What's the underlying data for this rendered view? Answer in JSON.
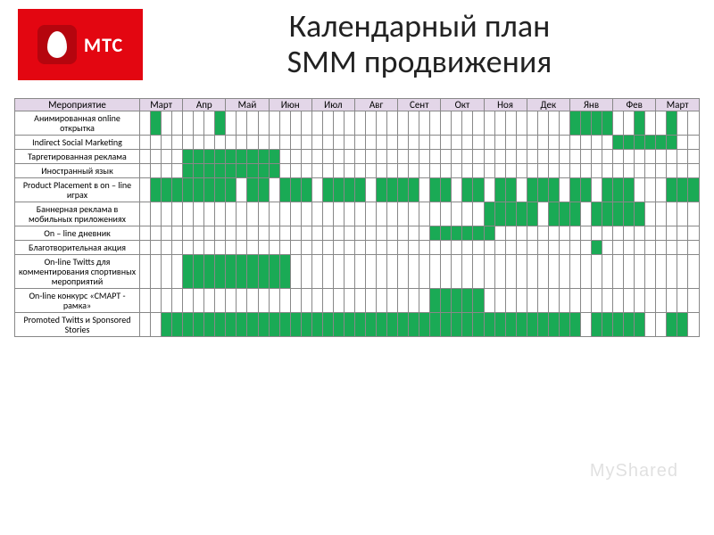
{
  "logo_text": "МТС",
  "title_line1": "Календарный план",
  "title_line2": "SMM продвижения",
  "watermark": "MyShared",
  "header_activity": "Мероприятие",
  "months": [
    "Март",
    "Апр",
    "Май",
    "Июн",
    "Июл",
    "Авг",
    "Сент",
    "Окт",
    "Ноя",
    "Дек",
    "Янв",
    "Фев",
    "Март"
  ],
  "weeks_per_month": 4,
  "colors": {
    "filled": "#1aaa55",
    "header_bg": "#e3d6e8",
    "logo_bg": "#e30611",
    "border": "#888"
  },
  "rows": [
    {
      "label": "Анимированная online открытка",
      "cells": [
        0,
        1,
        0,
        0,
        0,
        0,
        0,
        1,
        0,
        0,
        0,
        0,
        0,
        0,
        0,
        0,
        0,
        0,
        0,
        0,
        0,
        0,
        0,
        0,
        0,
        0,
        0,
        0,
        0,
        0,
        0,
        0,
        0,
        0,
        0,
        0,
        0,
        0,
        0,
        0,
        1,
        1,
        1,
        1,
        0,
        0,
        1,
        0,
        0,
        1,
        0,
        0
      ]
    },
    {
      "label": "Indirect Social Marketing",
      "cells": [
        0,
        0,
        0,
        0,
        0,
        0,
        0,
        0,
        0,
        0,
        0,
        0,
        0,
        0,
        0,
        0,
        0,
        0,
        0,
        0,
        0,
        0,
        0,
        0,
        0,
        0,
        0,
        0,
        0,
        0,
        0,
        0,
        0,
        0,
        0,
        0,
        0,
        0,
        0,
        0,
        0,
        0,
        0,
        0,
        1,
        1,
        1,
        1,
        1,
        1,
        0,
        0
      ]
    },
    {
      "label": "Таргетированная реклама",
      "cells": [
        0,
        0,
        0,
        0,
        1,
        1,
        1,
        1,
        1,
        1,
        1,
        1,
        1,
        0,
        0,
        0,
        0,
        0,
        0,
        0,
        0,
        0,
        0,
        0,
        0,
        0,
        0,
        0,
        0,
        0,
        0,
        0,
        0,
        0,
        0,
        0,
        0,
        0,
        0,
        0,
        0,
        0,
        0,
        0,
        0,
        0,
        0,
        0,
        0,
        0,
        0,
        0
      ]
    },
    {
      "label": "Иностранный язык",
      "cells": [
        0,
        0,
        0,
        0,
        1,
        1,
        1,
        1,
        1,
        1,
        1,
        1,
        1,
        0,
        0,
        0,
        0,
        0,
        0,
        0,
        0,
        0,
        0,
        0,
        0,
        0,
        0,
        0,
        0,
        0,
        0,
        0,
        0,
        0,
        0,
        0,
        0,
        0,
        0,
        0,
        0,
        0,
        0,
        0,
        0,
        0,
        0,
        0,
        0,
        0,
        0,
        0
      ]
    },
    {
      "label": "Product Placement в on – line играх",
      "cells": [
        0,
        1,
        1,
        1,
        1,
        1,
        1,
        1,
        1,
        0,
        1,
        1,
        0,
        1,
        1,
        1,
        0,
        1,
        1,
        1,
        1,
        0,
        1,
        1,
        1,
        1,
        0,
        1,
        1,
        0,
        1,
        1,
        0,
        1,
        1,
        0,
        1,
        1,
        1,
        0,
        1,
        1,
        0,
        1,
        1,
        1,
        0,
        0,
        0,
        1,
        1,
        1
      ]
    },
    {
      "label": "Баннерная реклама в мобильных приложениях",
      "cells": [
        0,
        0,
        0,
        0,
        0,
        0,
        0,
        0,
        0,
        0,
        0,
        0,
        0,
        0,
        0,
        0,
        0,
        0,
        0,
        0,
        0,
        0,
        0,
        0,
        0,
        0,
        0,
        0,
        0,
        0,
        0,
        0,
        1,
        1,
        1,
        1,
        1,
        0,
        1,
        1,
        1,
        0,
        1,
        1,
        1,
        1,
        1,
        0,
        0,
        0,
        0,
        0
      ]
    },
    {
      "label": "On – line дневник",
      "cells": [
        0,
        0,
        0,
        0,
        0,
        0,
        0,
        0,
        0,
        0,
        0,
        0,
        0,
        0,
        0,
        0,
        0,
        0,
        0,
        0,
        0,
        0,
        0,
        0,
        0,
        0,
        0,
        1,
        1,
        1,
        1,
        1,
        1,
        0,
        0,
        0,
        0,
        0,
        0,
        0,
        0,
        0,
        0,
        0,
        0,
        0,
        0,
        0,
        0,
        0,
        0,
        0
      ]
    },
    {
      "label": "Благотворительная акция",
      "cells": [
        0,
        0,
        0,
        0,
        0,
        0,
        0,
        0,
        0,
        0,
        0,
        0,
        0,
        0,
        0,
        0,
        0,
        0,
        0,
        0,
        0,
        0,
        0,
        0,
        0,
        0,
        0,
        0,
        0,
        0,
        0,
        0,
        0,
        0,
        0,
        0,
        0,
        0,
        0,
        0,
        0,
        0,
        1,
        0,
        0,
        0,
        0,
        0,
        0,
        0,
        0,
        0
      ]
    },
    {
      "label": "On-line Twitts для комментирования спортивных мероприятий",
      "cells": [
        0,
        0,
        0,
        0,
        1,
        1,
        1,
        1,
        1,
        1,
        1,
        1,
        1,
        1,
        0,
        0,
        0,
        0,
        0,
        0,
        0,
        0,
        0,
        0,
        0,
        0,
        0,
        0,
        0,
        0,
        0,
        0,
        0,
        0,
        0,
        0,
        0,
        0,
        0,
        0,
        0,
        0,
        0,
        0,
        0,
        0,
        0,
        0,
        0,
        0,
        0,
        0
      ]
    },
    {
      "label": "On-line конкурс «СМАРТ - рамка»",
      "cells": [
        0,
        0,
        0,
        0,
        0,
        0,
        0,
        0,
        0,
        0,
        0,
        0,
        0,
        0,
        0,
        0,
        0,
        0,
        0,
        0,
        0,
        0,
        0,
        0,
        0,
        0,
        0,
        1,
        1,
        1,
        1,
        1,
        0,
        0,
        0,
        0,
        0,
        0,
        0,
        0,
        0,
        0,
        0,
        0,
        0,
        0,
        0,
        0,
        0,
        0,
        0,
        0
      ]
    },
    {
      "label": "Promoted Twitts и Sponsored Stories",
      "cells": [
        0,
        0,
        1,
        1,
        1,
        1,
        1,
        1,
        1,
        1,
        1,
        1,
        1,
        1,
        1,
        1,
        1,
        1,
        1,
        1,
        1,
        1,
        1,
        1,
        1,
        1,
        1,
        1,
        1,
        1,
        1,
        1,
        1,
        1,
        1,
        1,
        1,
        1,
        1,
        1,
        1,
        0,
        1,
        1,
        1,
        1,
        1,
        0,
        0,
        1,
        1,
        0
      ]
    }
  ]
}
